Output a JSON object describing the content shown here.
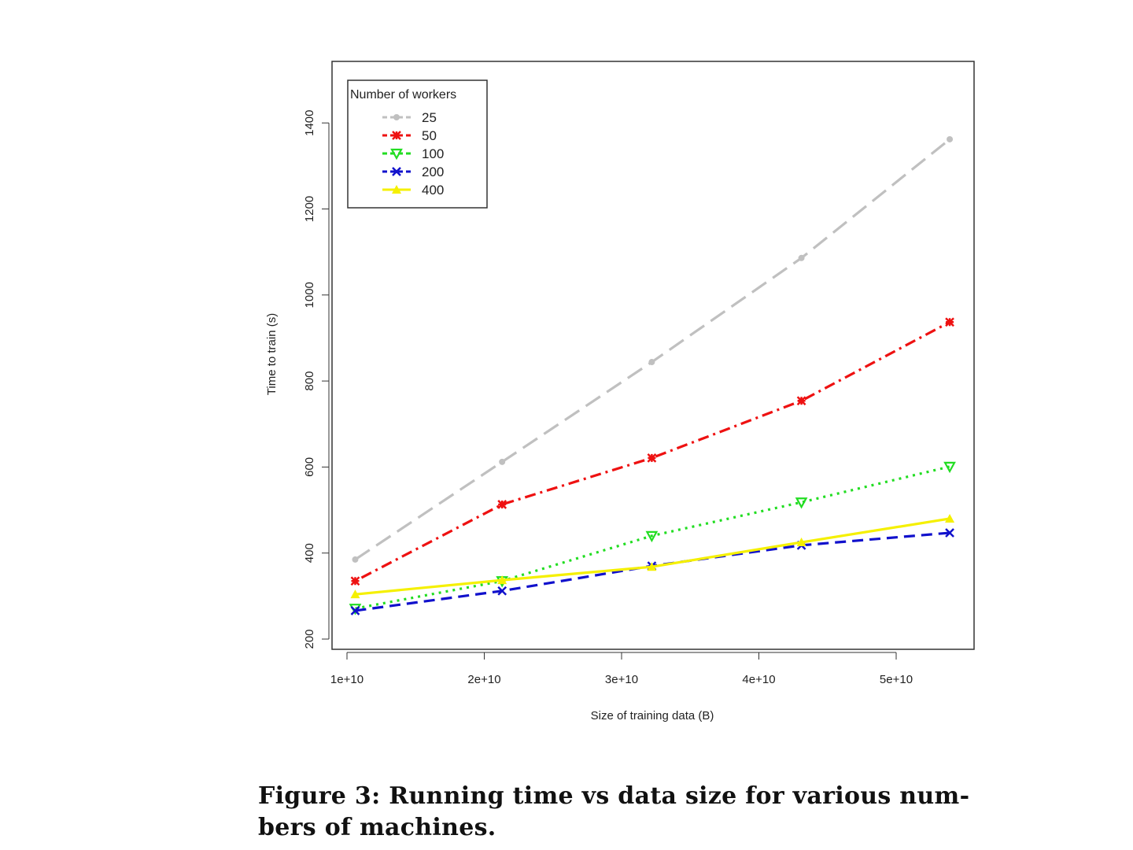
{
  "chart_data": {
    "type": "line",
    "title": "",
    "xlabel": "Size of training data (B)",
    "ylabel": "Time to train (s)",
    "x_ticks": [
      "1e+10",
      "2e+10",
      "3e+10",
      "4e+10",
      "5e+10"
    ],
    "x_tick_values": [
      10000000000.0,
      20000000000.0,
      30000000000.0,
      40000000000.0,
      50000000000.0
    ],
    "y_ticks": [
      "200",
      "400",
      "600",
      "800",
      "1000",
      "1200",
      "1400"
    ],
    "y_tick_values": [
      200,
      400,
      600,
      800,
      1000,
      1200,
      1400
    ],
    "xlim": [
      9000000000.0,
      55000000000.0
    ],
    "ylim": [
      180,
      1545
    ],
    "grid": false,
    "legend": {
      "title": "Number of workers",
      "placement": "top-left"
    },
    "x": [
      10600000000.0,
      21300000000.0,
      32200000000.0,
      43100000000.0,
      53900000000.0
    ],
    "series": [
      {
        "name": "25",
        "color": "#c0c0c0",
        "dash": "long-dash",
        "marker": "circle",
        "values": [
          385,
          612,
          844,
          1086,
          1362
        ]
      },
      {
        "name": "50",
        "color": "#ee1111",
        "dash": "dot-dash",
        "marker": "asterisk",
        "values": [
          335,
          513,
          621,
          754,
          937
        ]
      },
      {
        "name": "100",
        "color": "#22dd22",
        "dash": "dotted",
        "marker": "triangle-down",
        "values": [
          271,
          335,
          440,
          518,
          601
        ]
      },
      {
        "name": "200",
        "color": "#1111cc",
        "dash": "dashed",
        "marker": "x",
        "values": [
          266,
          312,
          370,
          418,
          447
        ]
      },
      {
        "name": "400",
        "color": "#f5f000",
        "dash": "solid",
        "marker": "triangle-up",
        "values": [
          304,
          337,
          368,
          425,
          480
        ]
      }
    ]
  },
  "caption": {
    "line1": "Figure 3: Running time vs data size for various num-",
    "line2": "bers of machines."
  }
}
